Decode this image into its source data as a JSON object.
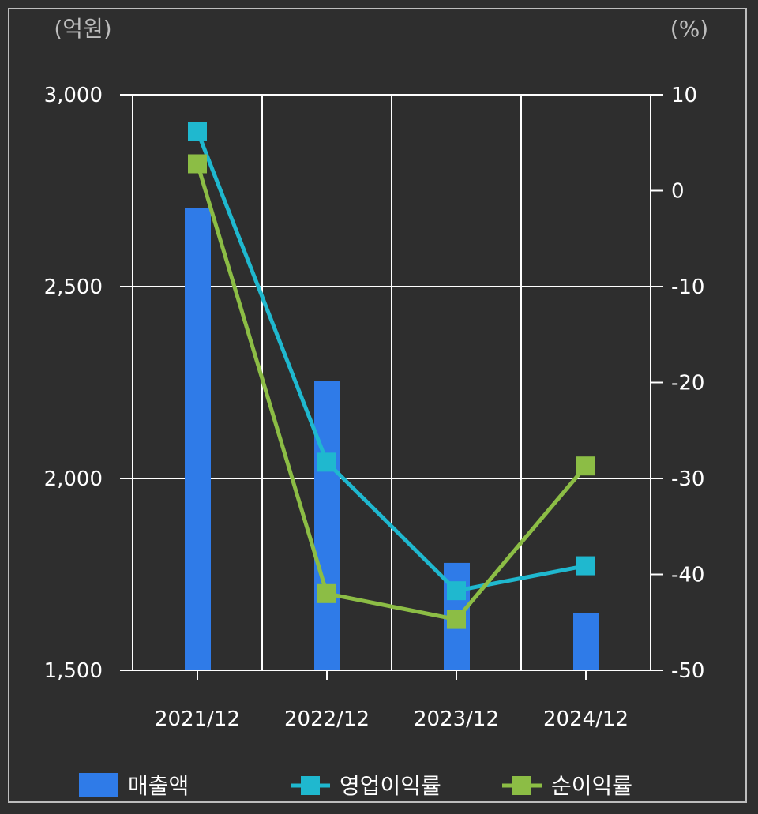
{
  "chart_data": {
    "type": "bar+line",
    "categories": [
      "2021/12",
      "2022/12",
      "2023/12",
      "2024/12"
    ],
    "left_axis": {
      "unit": "(억원)",
      "ylim": [
        1500,
        3000
      ],
      "ticks": [
        "3,000",
        "2,500",
        "2,000",
        "1,500"
      ],
      "tick_values": [
        3000,
        2500,
        2000,
        1500
      ]
    },
    "right_axis": {
      "unit": "(%)",
      "ylim": [
        -50,
        10
      ],
      "ticks": [
        "10",
        "0",
        "-10",
        "-20",
        "-30",
        "-40",
        "-50"
      ],
      "tick_values": [
        10,
        0,
        -10,
        -20,
        -30,
        -40,
        -50
      ]
    },
    "series": [
      {
        "name": "매출액",
        "type": "bar",
        "axis": "left",
        "color": "#2f7be8",
        "values": [
          2705,
          2255,
          1780,
          1650
        ]
      },
      {
        "name": "영업이익률",
        "type": "line",
        "axis": "right",
        "color": "#1fb8cf",
        "values": [
          6.2,
          -28.3,
          -41.7,
          -39.1
        ]
      },
      {
        "name": "순이익률",
        "type": "line",
        "axis": "right",
        "color": "#8cbd45",
        "values": [
          2.8,
          -42.0,
          -44.7,
          -28.7
        ]
      }
    ],
    "grid": true,
    "legend_position": "bottom"
  }
}
